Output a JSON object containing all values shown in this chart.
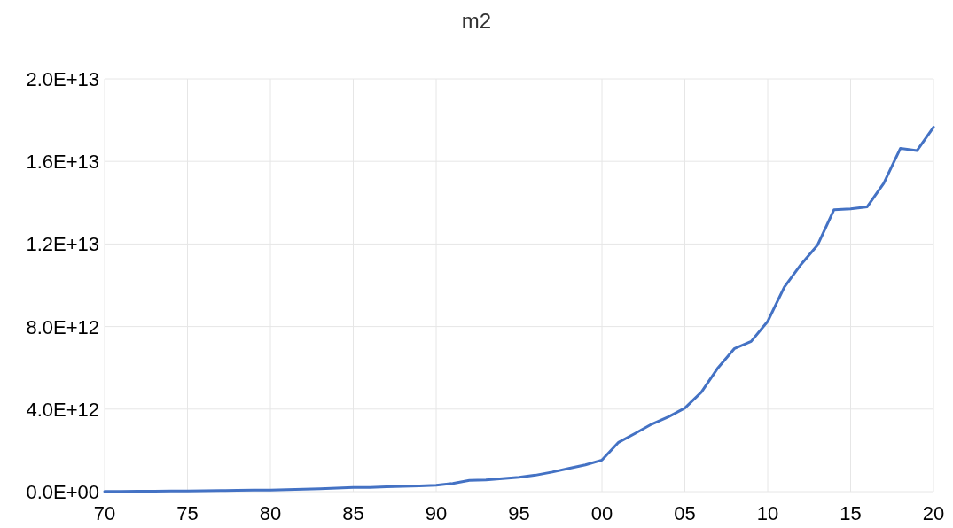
{
  "chart_data": {
    "type": "line",
    "title": "m2",
    "x": [
      1970,
      1971,
      1972,
      1973,
      1974,
      1975,
      1976,
      1977,
      1978,
      1979,
      1980,
      1981,
      1982,
      1983,
      1984,
      1985,
      1986,
      1987,
      1988,
      1989,
      1990,
      1991,
      1992,
      1993,
      1994,
      1995,
      1996,
      1997,
      1998,
      1999,
      2000,
      2001,
      2002,
      2003,
      2004,
      2005,
      2006,
      2007,
      2008,
      2009,
      2010,
      2011,
      2012,
      2013,
      2014,
      2015,
      2016,
      2017,
      2018,
      2019,
      2020
    ],
    "series": [
      {
        "color": "#4472c4",
        "values": [
          10000000000.0,
          10000000000.0,
          20000000000.0,
          20000000000.0,
          30000000000.0,
          30000000000.0,
          40000000000.0,
          50000000000.0,
          60000000000.0,
          70000000000.0,
          80000000000.0,
          100000000000.0,
          120000000000.0,
          140000000000.0,
          170000000000.0,
          200000000000.0,
          200000000000.0,
          240000000000.0,
          260000000000.0,
          280000000000.0,
          310000000000.0,
          400000000000.0,
          550000000000.0,
          570000000000.0,
          630000000000.0,
          700000000000.0,
          800000000000.0,
          950000000000.0,
          1130000000000.0,
          1300000000000.0,
          1530000000000.0,
          2390000000000.0,
          2820000000000.0,
          3270000000000.0,
          3620000000000.0,
          4050000000000.0,
          4820000000000.0,
          6000000000000.0,
          6940000000000.0,
          7280000000000.0,
          8250000000000.0,
          9910000000000.0,
          11000000000000.0,
          11940000000000.0,
          13660000000000.0,
          13700000000000.0,
          13800000000000.0,
          14940000000000.0,
          16630000000000.0,
          16520000000000.0,
          17660000000000.0
        ]
      }
    ],
    "xlim": [
      1970,
      2020
    ],
    "xticks": [
      {
        "value": 1970,
        "label": "70"
      },
      {
        "value": 1975,
        "label": "75"
      },
      {
        "value": 1980,
        "label": "80"
      },
      {
        "value": 1985,
        "label": "85"
      },
      {
        "value": 1990,
        "label": "90"
      },
      {
        "value": 1995,
        "label": "95"
      },
      {
        "value": 2000,
        "label": "00"
      },
      {
        "value": 2005,
        "label": "05"
      },
      {
        "value": 2010,
        "label": "10"
      },
      {
        "value": 2015,
        "label": "15"
      },
      {
        "value": 2020,
        "label": "20"
      }
    ],
    "ylim": [
      0,
      20000000000000.0
    ],
    "yticks": [
      {
        "value": 0,
        "label": "0.0E+00"
      },
      {
        "value": 4000000000000.0,
        "label": "4.0E+12"
      },
      {
        "value": 8000000000000.0,
        "label": "8.0E+12"
      },
      {
        "value": 12000000000000.0,
        "label": "1.2E+13"
      },
      {
        "value": 16000000000000.0,
        "label": "1.6E+13"
      },
      {
        "value": 20000000000000.0,
        "label": "2.0E+13"
      }
    ],
    "grid": true,
    "marker": "none",
    "line_style": "solid"
  }
}
